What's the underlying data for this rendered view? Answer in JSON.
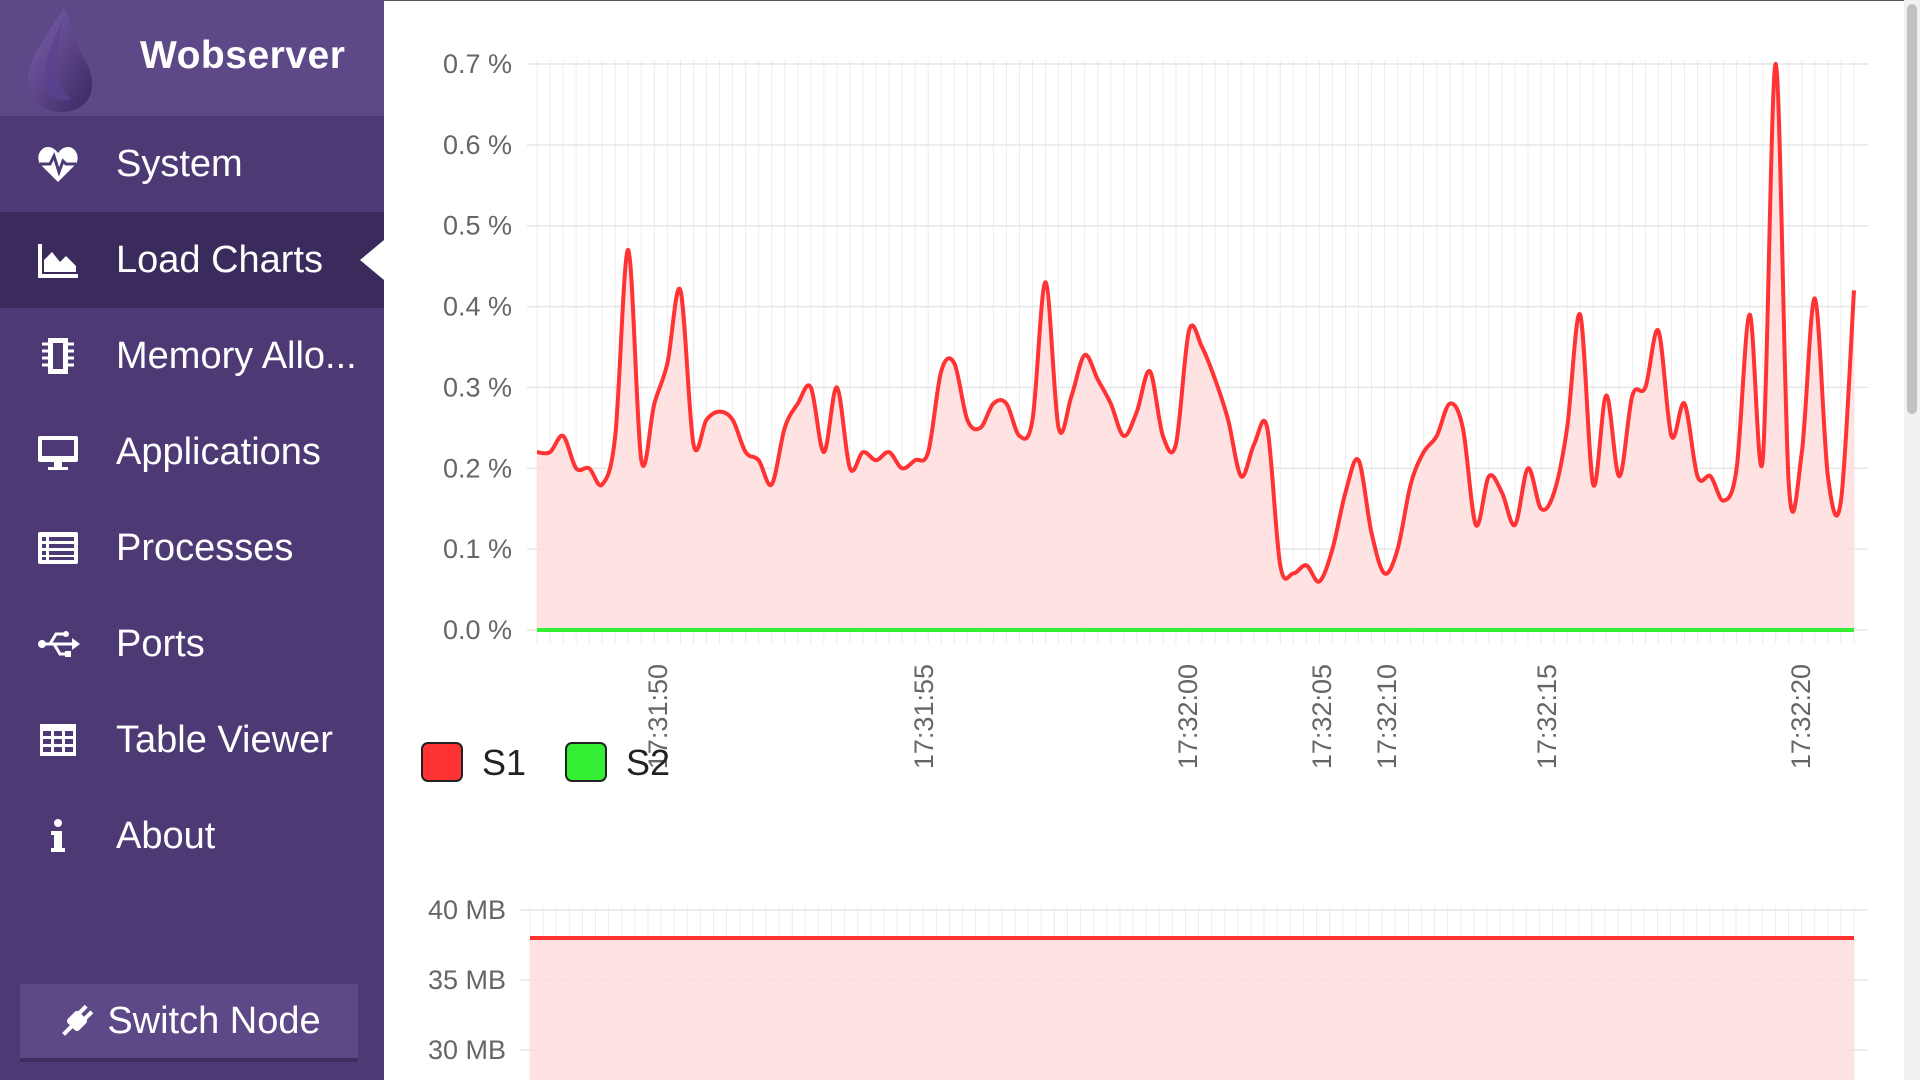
{
  "app": {
    "title": "Wobserver"
  },
  "sidebar": {
    "items": [
      {
        "label": "System",
        "icon": "heartbeat-icon"
      },
      {
        "label": "Load Charts",
        "icon": "area-chart-icon",
        "active": true
      },
      {
        "label": "Memory Allo...",
        "icon": "memory-chip-icon"
      },
      {
        "label": "Applications",
        "icon": "desktop-icon"
      },
      {
        "label": "Processes",
        "icon": "list-icon"
      },
      {
        "label": "Ports",
        "icon": "usb-icon"
      },
      {
        "label": "Table Viewer",
        "icon": "table-icon"
      },
      {
        "label": "About",
        "icon": "info-icon"
      }
    ],
    "switch_node_label": "Switch Node"
  },
  "colors": {
    "sidebar": "#4d3a75",
    "brand": "#5d4888",
    "active": "#3b2a5c",
    "series1": "#ff3333",
    "series2": "#33ee33"
  },
  "chart_data": [
    {
      "type": "area",
      "ylim": [
        0,
        0.7
      ],
      "y_ticks": [
        "0.0 %",
        "0.1 %",
        "0.2 %",
        "0.3 %",
        "0.4 %",
        "0.5 %",
        "0.6 %",
        "0.7 %"
      ],
      "x_ticks": [
        "17:31:50",
        "17:31:55",
        "17:32:00",
        "17:32:05",
        "17:32:10",
        "17:32:15",
        "17:32:20"
      ],
      "legend": [
        "S1",
        "S2"
      ],
      "series": [
        {
          "name": "S1",
          "values": [
            0.22,
            0.22,
            0.24,
            0.2,
            0.2,
            0.18,
            0.24,
            0.47,
            0.21,
            0.28,
            0.33,
            0.42,
            0.23,
            0.26,
            0.27,
            0.26,
            0.22,
            0.21,
            0.18,
            0.25,
            0.28,
            0.3,
            0.22,
            0.3,
            0.2,
            0.22,
            0.21,
            0.22,
            0.2,
            0.21,
            0.22,
            0.32,
            0.33,
            0.26,
            0.25,
            0.28,
            0.28,
            0.24,
            0.26,
            0.43,
            0.25,
            0.29,
            0.34,
            0.31,
            0.28,
            0.24,
            0.27,
            0.32,
            0.24,
            0.23,
            0.37,
            0.35,
            0.31,
            0.26,
            0.19,
            0.23,
            0.25,
            0.08,
            0.07,
            0.08,
            0.06,
            0.1,
            0.17,
            0.21,
            0.12,
            0.07,
            0.1,
            0.18,
            0.22,
            0.24,
            0.28,
            0.25,
            0.13,
            0.19,
            0.17,
            0.13,
            0.2,
            0.15,
            0.17,
            0.25,
            0.39,
            0.18,
            0.29,
            0.19,
            0.29,
            0.3,
            0.37,
            0.24,
            0.28,
            0.19,
            0.19,
            0.16,
            0.2,
            0.39,
            0.21,
            0.7,
            0.18,
            0.22,
            0.41,
            0.19,
            0.16,
            0.42
          ]
        },
        {
          "name": "S2",
          "values": [
            0,
            0
          ]
        }
      ]
    },
    {
      "type": "area",
      "ylim": [
        28,
        40
      ],
      "y_ticks": [
        "30 MB",
        "35 MB",
        "40 MB"
      ],
      "series": [
        {
          "name": "S1",
          "values": [
            38,
            38
          ]
        }
      ]
    }
  ]
}
